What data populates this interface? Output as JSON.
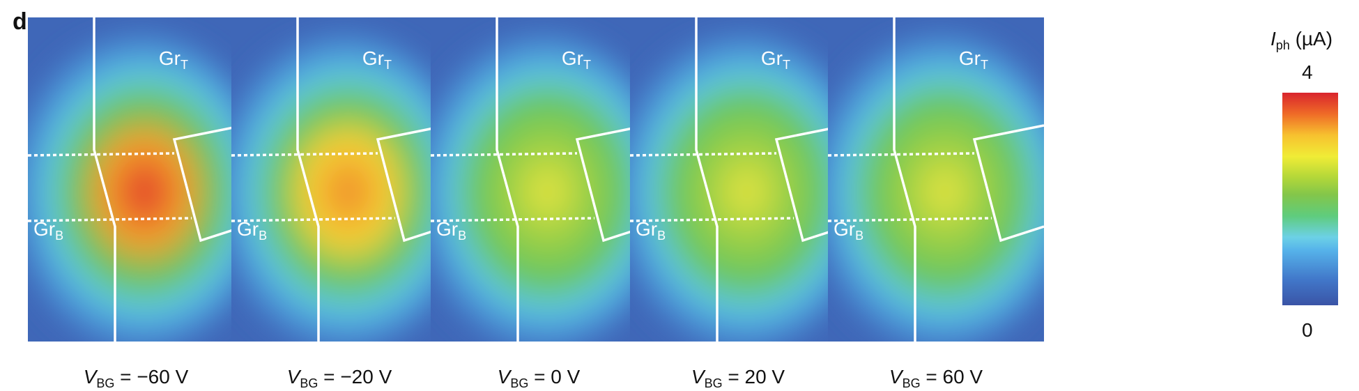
{
  "figure": {
    "panel_letter": "d",
    "colorbar": {
      "symbol": "I",
      "symbol_sub": "ph",
      "unit": "(µA)",
      "max_label": "4",
      "min_label": "0",
      "colormap": [
        "#3a54a6",
        "#56b3ea",
        "#5fcc7d",
        "#b2d739",
        "#f0ec36",
        "#ef6b27",
        "#d9242d"
      ]
    },
    "panels": [
      {
        "label_top": "Gr",
        "label_top_sub": "T",
        "label_bottom": "Gr",
        "label_bottom_sub": "B",
        "vbg_symbol": "V",
        "vbg_sub": "BG",
        "vbg_text": " = −60 V",
        "peak_intensity": 1.0
      },
      {
        "label_top": "Gr",
        "label_top_sub": "T",
        "label_bottom": "Gr",
        "label_bottom_sub": "B",
        "vbg_symbol": "V",
        "vbg_sub": "BG",
        "vbg_text": " = −20 V",
        "peak_intensity": 0.85
      },
      {
        "label_top": "Gr",
        "label_top_sub": "T",
        "label_bottom": "Gr",
        "label_bottom_sub": "B",
        "vbg_symbol": "V",
        "vbg_sub": "BG",
        "vbg_text": " = 0 V",
        "peak_intensity": 0.65
      },
      {
        "label_top": "Gr",
        "label_top_sub": "T",
        "label_bottom": "Gr",
        "label_bottom_sub": "B",
        "vbg_symbol": "V",
        "vbg_sub": "BG",
        "vbg_text": " = 20 V",
        "peak_intensity": 0.6
      },
      {
        "label_top": "Gr",
        "label_top_sub": "T",
        "label_bottom": "Gr",
        "label_bottom_sub": "B",
        "vbg_symbol": "V",
        "vbg_sub": "BG",
        "vbg_text": " = 60 V",
        "peak_intensity": 0.58
      }
    ]
  }
}
